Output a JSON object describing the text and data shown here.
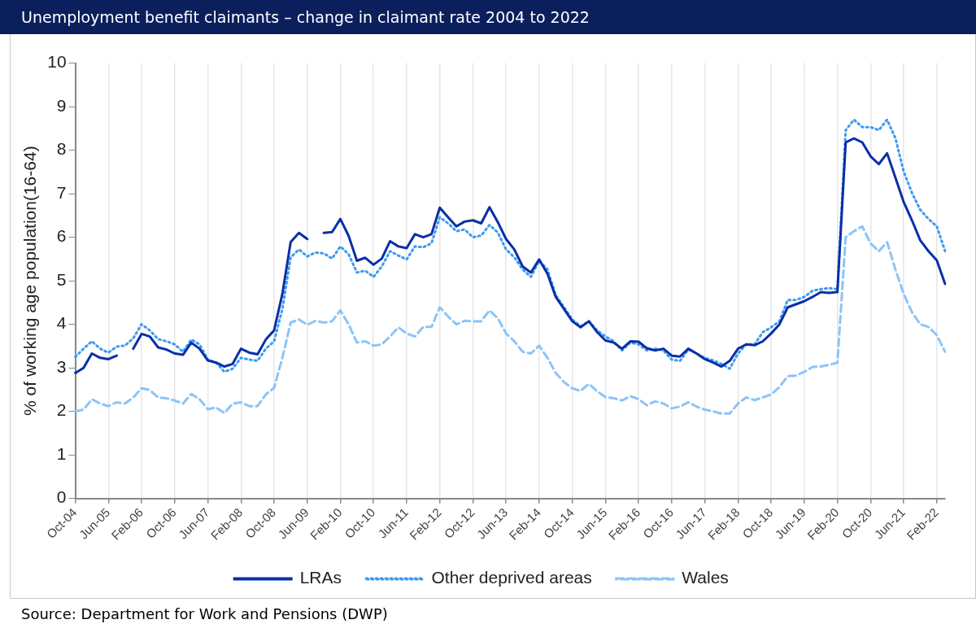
{
  "chart_data": {
    "type": "line",
    "title": "Unemployment benefit claimants – change in claimant rate 2004 to 2022",
    "ylabel": "% of working age population(16-64)",
    "categories": [
      "Oct-04",
      null,
      null,
      null,
      "Jun-05",
      null,
      null,
      null,
      "Feb-06",
      null,
      null,
      null,
      "Oct-06",
      null,
      null,
      null,
      "Jun-07",
      null,
      null,
      null,
      "Feb-08",
      null,
      null,
      null,
      "Oct-08",
      null,
      null,
      null,
      "Jun-09",
      null,
      null,
      null,
      "Feb-10",
      null,
      null,
      null,
      "Oct-10",
      null,
      null,
      null,
      "Jun-11",
      null,
      null,
      null,
      "Feb-12",
      null,
      null,
      null,
      "Oct-12",
      null,
      null,
      null,
      "Jun-13",
      null,
      null,
      null,
      "Feb-14",
      null,
      null,
      null,
      "Oct-14",
      null,
      null,
      null,
      "Jun-15",
      null,
      null,
      null,
      "Feb-16",
      null,
      null,
      null,
      "Oct-16",
      null,
      null,
      null,
      "Jun-17",
      null,
      null,
      null,
      "Feb-18",
      null,
      null,
      null,
      "Oct-18",
      null,
      null,
      null,
      "Jun-19",
      null,
      null,
      null,
      "Feb-20",
      null,
      null,
      null,
      "Oct-20",
      null,
      null,
      null,
      "Jun-21",
      null,
      null,
      null,
      "Feb-22",
      null
    ],
    "series": [
      {
        "name": "LRAs",
        "color": "#0a2fa8",
        "line_style": "solid",
        "values": [
          2.88,
          3.0,
          3.33,
          3.23,
          3.2,
          3.28,
          null,
          3.44,
          3.78,
          3.72,
          3.47,
          3.42,
          3.33,
          3.3,
          3.58,
          3.44,
          3.17,
          3.12,
          3.03,
          3.09,
          3.44,
          3.35,
          3.31,
          3.65,
          3.86,
          4.7,
          5.89,
          6.1,
          5.96,
          null,
          6.1,
          6.12,
          6.42,
          6.03,
          5.46,
          5.53,
          5.37,
          5.51,
          5.91,
          5.79,
          5.75,
          6.07,
          6.0,
          6.07,
          6.68,
          6.46,
          6.25,
          6.36,
          6.39,
          6.32,
          6.69,
          6.35,
          5.96,
          5.72,
          5.33,
          5.19,
          5.49,
          5.16,
          4.63,
          4.35,
          4.07,
          3.93,
          4.07,
          3.82,
          3.63,
          3.58,
          3.44,
          3.61,
          3.6,
          3.45,
          3.4,
          3.44,
          3.28,
          3.26,
          3.44,
          3.33,
          3.2,
          3.12,
          3.03,
          3.16,
          3.44,
          3.54,
          3.52,
          3.61,
          3.79,
          4.0,
          4.39,
          4.46,
          4.53,
          4.63,
          4.74,
          4.72,
          4.74,
          8.18,
          8.27,
          8.18,
          7.86,
          7.68,
          7.93,
          7.37,
          6.81,
          6.39,
          5.93,
          5.68,
          5.47,
          4.93
        ]
      },
      {
        "name": "Other deprived areas",
        "color": "#3d9bf0",
        "line_style": "dotted",
        "values": [
          3.25,
          3.44,
          3.61,
          3.44,
          3.35,
          3.49,
          3.51,
          3.68,
          4.0,
          3.86,
          3.66,
          3.61,
          3.54,
          3.37,
          3.65,
          3.54,
          3.19,
          3.12,
          2.91,
          2.98,
          3.23,
          3.19,
          3.16,
          3.44,
          3.61,
          4.35,
          5.54,
          5.72,
          5.56,
          5.65,
          5.63,
          5.51,
          5.79,
          5.61,
          5.19,
          5.23,
          5.09,
          5.33,
          5.68,
          5.58,
          5.49,
          5.79,
          5.77,
          5.86,
          6.46,
          6.32,
          6.14,
          6.18,
          6.0,
          6.04,
          6.28,
          6.11,
          5.72,
          5.54,
          5.26,
          5.09,
          5.46,
          5.26,
          4.67,
          4.39,
          4.11,
          3.96,
          4.07,
          3.86,
          3.72,
          3.61,
          3.4,
          3.58,
          3.54,
          3.4,
          3.44,
          3.4,
          3.19,
          3.16,
          3.42,
          3.33,
          3.23,
          3.17,
          3.09,
          2.98,
          3.33,
          3.54,
          3.54,
          3.82,
          3.93,
          4.07,
          4.56,
          4.56,
          4.63,
          4.77,
          4.81,
          4.83,
          4.81,
          8.46,
          8.7,
          8.53,
          8.53,
          8.46,
          8.7,
          8.28,
          7.51,
          7.02,
          6.63,
          6.42,
          6.25,
          5.68
        ]
      },
      {
        "name": "Wales",
        "color": "#8cc4f7",
        "line_style": "dashed",
        "values": [
          2.0,
          2.04,
          2.28,
          2.18,
          2.12,
          2.21,
          2.18,
          2.32,
          2.53,
          2.49,
          2.32,
          2.3,
          2.25,
          2.18,
          2.4,
          2.28,
          2.05,
          2.09,
          1.96,
          2.18,
          2.21,
          2.12,
          2.12,
          2.39,
          2.54,
          3.23,
          4.04,
          4.11,
          3.99,
          4.08,
          4.04,
          4.07,
          4.32,
          4.0,
          3.58,
          3.61,
          3.51,
          3.54,
          3.72,
          3.93,
          3.79,
          3.72,
          3.94,
          3.94,
          4.39,
          4.18,
          4.0,
          4.08,
          4.07,
          4.07,
          4.32,
          4.14,
          3.79,
          3.61,
          3.37,
          3.33,
          3.51,
          3.23,
          2.88,
          2.67,
          2.53,
          2.47,
          2.63,
          2.46,
          2.33,
          2.3,
          2.25,
          2.35,
          2.28,
          2.14,
          2.23,
          2.18,
          2.07,
          2.11,
          2.21,
          2.11,
          2.04,
          2.0,
          1.95,
          1.95,
          2.18,
          2.32,
          2.26,
          2.32,
          2.39,
          2.56,
          2.81,
          2.82,
          2.91,
          3.02,
          3.03,
          3.07,
          3.12,
          6.0,
          6.14,
          6.25,
          5.86,
          5.68,
          5.89,
          5.26,
          4.7,
          4.28,
          4.0,
          3.94,
          3.75,
          3.37
        ]
      }
    ],
    "ylim": [
      0,
      10
    ],
    "yticks": [
      0,
      1,
      2,
      3,
      4,
      5,
      6,
      7,
      8,
      9,
      10
    ],
    "grid": "x",
    "legend": "bottom",
    "marker": "none",
    "annotations": [
      "Source: Department for Work and Pensions (DWP)"
    ]
  }
}
